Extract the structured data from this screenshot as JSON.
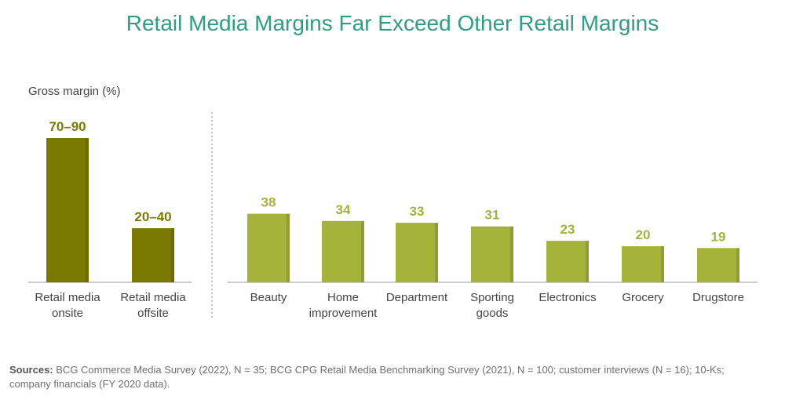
{
  "title": "Retail Media Margins Far Exceed Other Retail Margins",
  "ylabel": "Gross margin (%)",
  "sources_label": "Sources:",
  "sources_text": "BCG Commerce Media Survey (2022), N = 35; BCG CPG Retail Media Benchmarking Survey (2021), N = 100; customer interviews (N = 16); 10-Ks; company financials (FY 2020 data).",
  "colors": {
    "retail_media": "#7a7a00",
    "other": "#a5b33a",
    "title": "#2e9e83"
  },
  "chart_data": {
    "type": "bar",
    "title": "Retail Media Margins Far Exceed Other Retail Margins",
    "ylabel": "Gross margin (%)",
    "ylim": [
      0,
      100
    ],
    "grid": false,
    "groups": [
      {
        "group": "retail_media",
        "categories": [
          [
            "Retail media",
            "onsite"
          ],
          [
            "Retail media",
            "offsite"
          ]
        ],
        "values": [
          80,
          30
        ],
        "value_labels": [
          "70–90",
          "20–40"
        ]
      },
      {
        "group": "other_retail",
        "categories": [
          [
            "Beauty"
          ],
          [
            "Home",
            "improvement"
          ],
          [
            "Department"
          ],
          [
            "Sporting",
            "goods"
          ],
          [
            "Electronics"
          ],
          [
            "Grocery"
          ],
          [
            "Drugstore"
          ]
        ],
        "values": [
          38,
          34,
          33,
          31,
          23,
          20,
          19
        ],
        "value_labels": [
          "38",
          "34",
          "33",
          "31",
          "23",
          "20",
          "19"
        ]
      }
    ]
  }
}
